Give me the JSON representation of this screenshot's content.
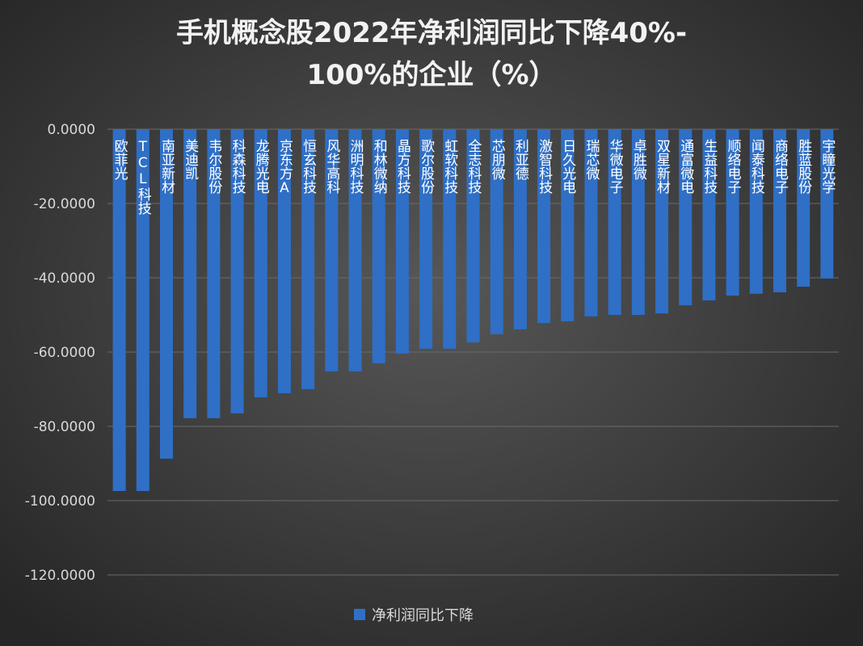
{
  "chart_data": {
    "type": "bar",
    "title": [
      "手机概念股2022年净利润同比下降40%-",
      "100%的企业（%）"
    ],
    "categories": [
      "欧菲光",
      "TCL科技",
      "南亚新材",
      "美迪凯",
      "韦尔股份",
      "科森科技",
      "龙腾光电",
      "京东方A",
      "恒玄科技",
      "风华高科",
      "洲明科技",
      "和林微纳",
      "晶方科技",
      "歌尔股份",
      "虹软科技",
      "全志科技",
      "芯朋微",
      "利亚德",
      "激智科技",
      "日久光电",
      "瑞芯微",
      "华微电子",
      "卓胜微",
      "双星新材",
      "通富微电",
      "生益科技",
      "顺络电子",
      "闻泰科技",
      "商络电子",
      "胜蓝股份",
      "宇瞳光学"
    ],
    "series": [
      {
        "name": "净利润同比下降",
        "color": "#2f6fc6",
        "values": [
          -97.4,
          -97.4,
          -88.7,
          -77.8,
          -77.8,
          -76.5,
          -72.2,
          -71.1,
          -70.0,
          -65.2,
          -65.2,
          -63.0,
          -60.4,
          -59.1,
          -59.1,
          -57.4,
          -55.2,
          -53.9,
          -52.2,
          -51.7,
          -50.4,
          -50.0,
          -50.0,
          -49.6,
          -47.4,
          -46.1,
          -44.8,
          -44.3,
          -43.9,
          -42.4,
          -40.2
        ]
      }
    ],
    "ylim": [
      -120,
      0
    ],
    "yticks": [
      {
        "value": 0,
        "label": "0.0000"
      },
      {
        "value": -20,
        "label": "-20.0000"
      },
      {
        "value": -40,
        "label": "-40.0000"
      },
      {
        "value": -60,
        "label": "-60.0000"
      },
      {
        "value": -80,
        "label": "-80.0000"
      },
      {
        "value": -100,
        "label": "-100.0000"
      },
      {
        "value": -120,
        "label": "-120.0000"
      }
    ],
    "grid": true,
    "legend": "bottom"
  }
}
